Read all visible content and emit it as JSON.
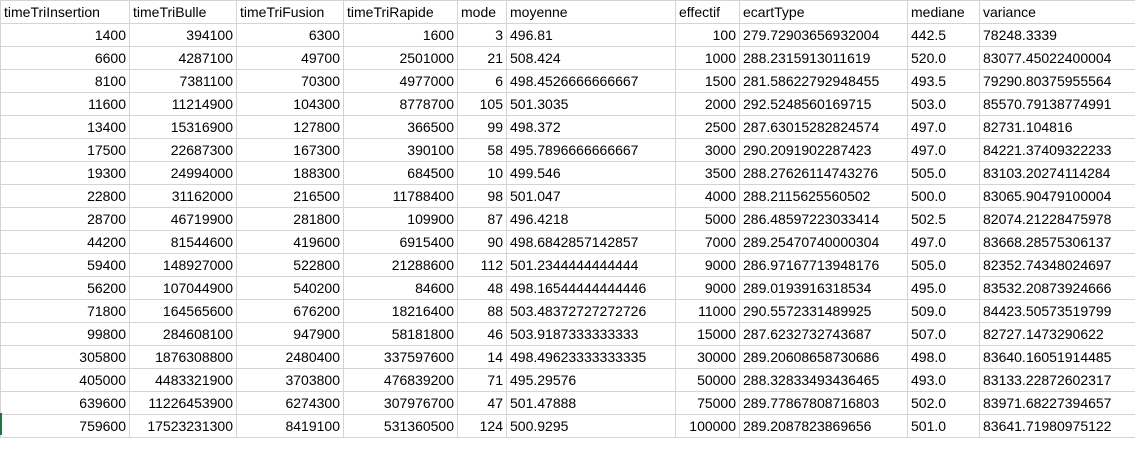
{
  "columns": [
    "timeTriInsertion",
    "timeTriBulle",
    "timeTriFusion",
    "timeTriRapide",
    "mode",
    "moyenne",
    "effectif",
    "ecartType",
    "mediane",
    "variance"
  ],
  "rows": [
    [
      "1400",
      "394100",
      "6300",
      "1600",
      "3",
      "496.81",
      "100",
      "279.72903656932004",
      "442.5",
      "78248.3339"
    ],
    [
      "6600",
      "4287100",
      "49700",
      "2501000",
      "21",
      "508.424",
      "1000",
      "288.2315913011619",
      "520.0",
      "83077.45022400004"
    ],
    [
      "8100",
      "7381100",
      "70300",
      "4977000",
      "6",
      "498.4526666666667",
      "1500",
      "281.58622792948455",
      "493.5",
      "79290.80375955564"
    ],
    [
      "11600",
      "11214900",
      "104300",
      "8778700",
      "105",
      "501.3035",
      "2000",
      "292.5248560169715",
      "503.0",
      "85570.79138774991"
    ],
    [
      "13400",
      "15316900",
      "127800",
      "366500",
      "99",
      "498.372",
      "2500",
      "287.63015282824574",
      "497.0",
      "82731.104816"
    ],
    [
      "17500",
      "22687300",
      "167300",
      "390100",
      "58",
      "495.7896666666667",
      "3000",
      "290.2091902287423",
      "497.0",
      "84221.37409322233"
    ],
    [
      "19300",
      "24994000",
      "188300",
      "684500",
      "10",
      "499.546",
      "3500",
      "288.27626114743276",
      "505.0",
      "83103.20274114284"
    ],
    [
      "22800",
      "31162000",
      "216500",
      "11788400",
      "98",
      "501.047",
      "4000",
      "288.2115625560502",
      "500.0",
      "83065.90479100004"
    ],
    [
      "28700",
      "46719900",
      "281800",
      "109900",
      "87",
      "496.4218",
      "5000",
      "286.48597223033414",
      "502.5",
      "82074.21228475978"
    ],
    [
      "44200",
      "81544600",
      "419600",
      "6915400",
      "90",
      "498.6842857142857",
      "7000",
      "289.25470740000304",
      "497.0",
      "83668.28575306137"
    ],
    [
      "59400",
      "148927000",
      "522800",
      "21288600",
      "112",
      "501.2344444444444",
      "9000",
      "286.97167713948176",
      "505.0",
      "82352.74348024697"
    ],
    [
      "56200",
      "107044900",
      "540200",
      "84600",
      "48",
      "498.16544444444446",
      "9000",
      "289.0193916318534",
      "495.0",
      "83532.20873924666"
    ],
    [
      "71800",
      "164565600",
      "676200",
      "18216400",
      "88",
      "503.48372727272726",
      "11000",
      "290.5572331489925",
      "509.0",
      "84423.50573519799"
    ],
    [
      "99800",
      "284608100",
      "947900",
      "58181800",
      "46",
      "503.9187333333333",
      "15000",
      "287.6232732743687",
      "507.0",
      "82727.1473290622"
    ],
    [
      "305800",
      "1876308800",
      "2480400",
      "337597600",
      "14",
      "498.49623333333335",
      "30000",
      "289.20608658730686",
      "498.0",
      "83640.16051914485"
    ],
    [
      "405000",
      "4483321900",
      "3703800",
      "476839200",
      "71",
      "495.29576",
      "50000",
      "288.32833493436465",
      "493.0",
      "83133.22872602317"
    ],
    [
      "639600",
      "11226453900",
      "6274300",
      "307976700",
      "47",
      "501.47888",
      "75000",
      "289.77867808716803",
      "502.0",
      "83971.68227394657"
    ],
    [
      "759600",
      "17523231300",
      "8419100",
      "531360500",
      "124",
      "500.9295",
      "100000",
      "289.2087823869656",
      "501.0",
      "83641.71980975122"
    ]
  ]
}
